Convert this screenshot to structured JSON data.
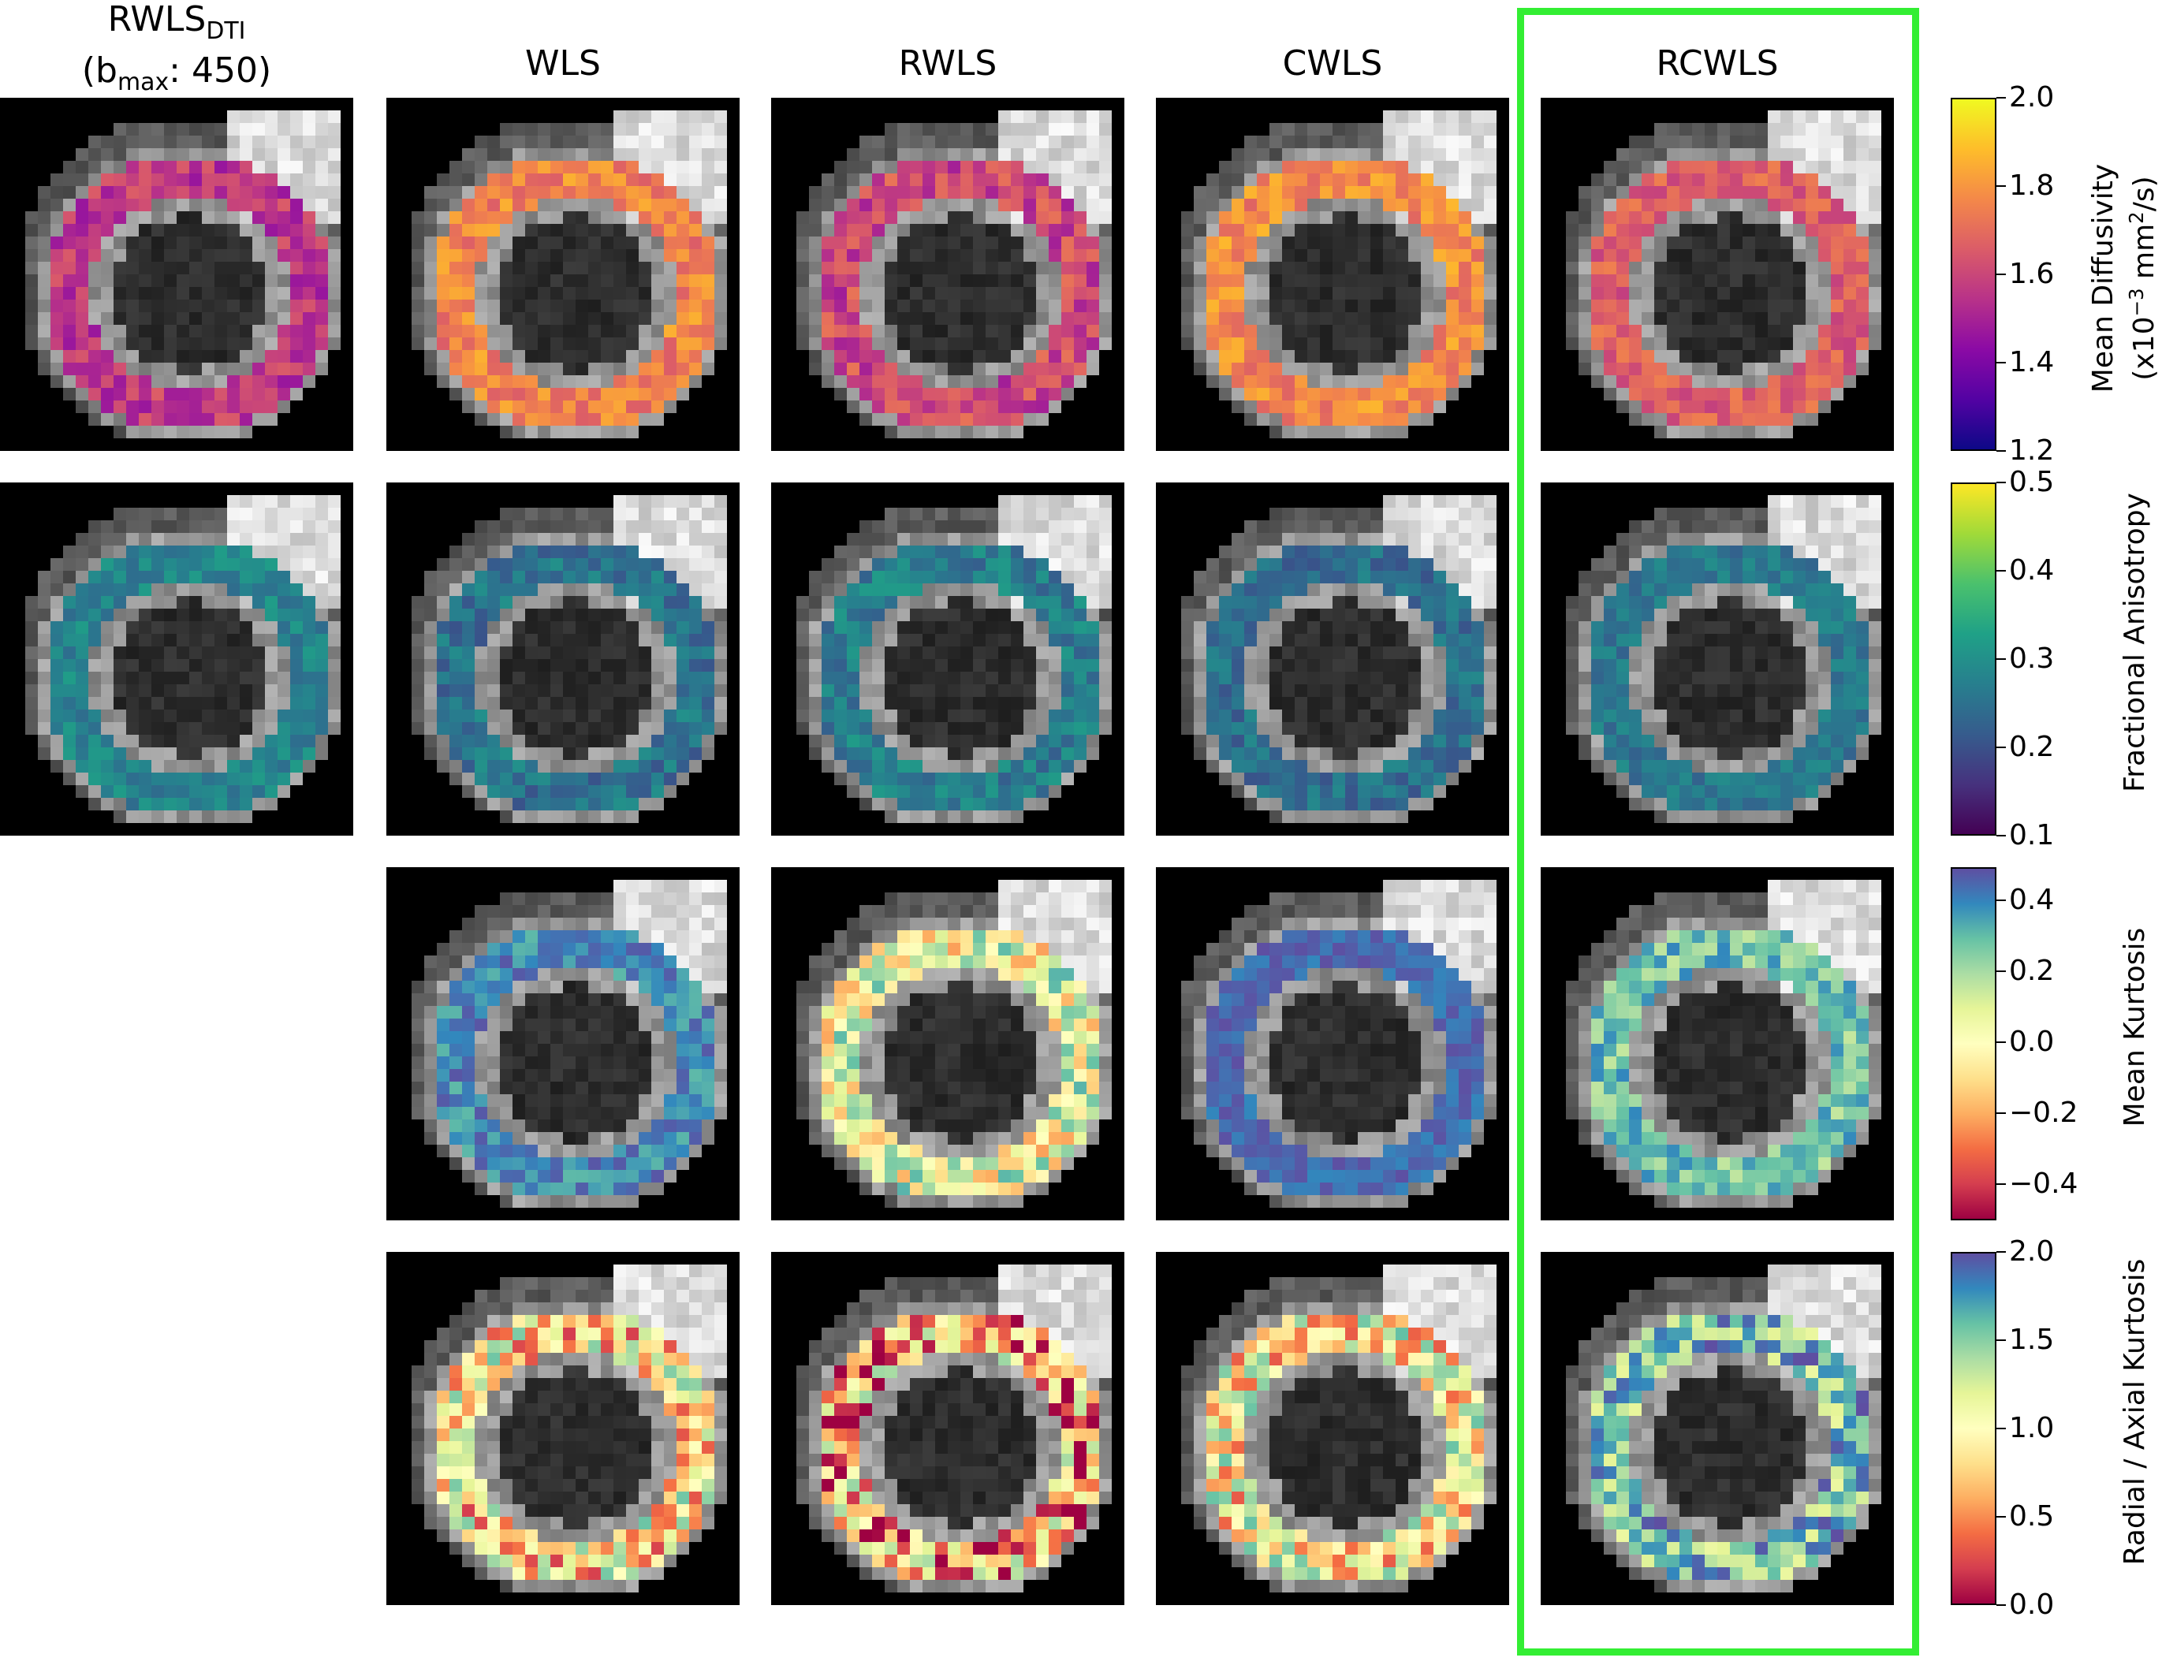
{
  "columns": [
    {
      "title_main": "RWLS",
      "title_sub": "DTI",
      "title_line2_prefix": "(b",
      "title_line2_sub": "max",
      "title_line2_suffix": ": 450)"
    },
    {
      "title": "WLS"
    },
    {
      "title": "RWLS"
    },
    {
      "title": "CWLS"
    },
    {
      "title": "RCWLS"
    }
  ],
  "rows": [
    {
      "colormap": "plasma",
      "label_main": "Mean Diffusivity",
      "label_unit_prefix": "(x10",
      "label_unit_sup": "−3",
      "label_unit_mid": " mm",
      "label_unit_sup2": "2",
      "label_unit_suffix": "/s)",
      "ticks": [
        "2.0",
        "1.8",
        "1.6",
        "1.4",
        "1.2"
      ]
    },
    {
      "colormap": "viridis",
      "label_main": "Fractional Anisotropy",
      "ticks": [
        "0.5",
        "0.4",
        "0.3",
        "0.2",
        "0.1"
      ]
    },
    {
      "colormap": "spectral",
      "label_main": "Mean Kurtosis",
      "ticks": [
        "0.4",
        "0.2",
        "0.0",
        "−0.2",
        "−0.4"
      ]
    },
    {
      "colormap": "spectral",
      "label_main": "Radial / Axial Kurtosis",
      "ticks": [
        "2.0",
        "1.5",
        "1.0",
        "0.5",
        "0.0"
      ]
    }
  ],
  "highlight_color": "#33ee33",
  "highlighted_column": "RCWLS"
}
